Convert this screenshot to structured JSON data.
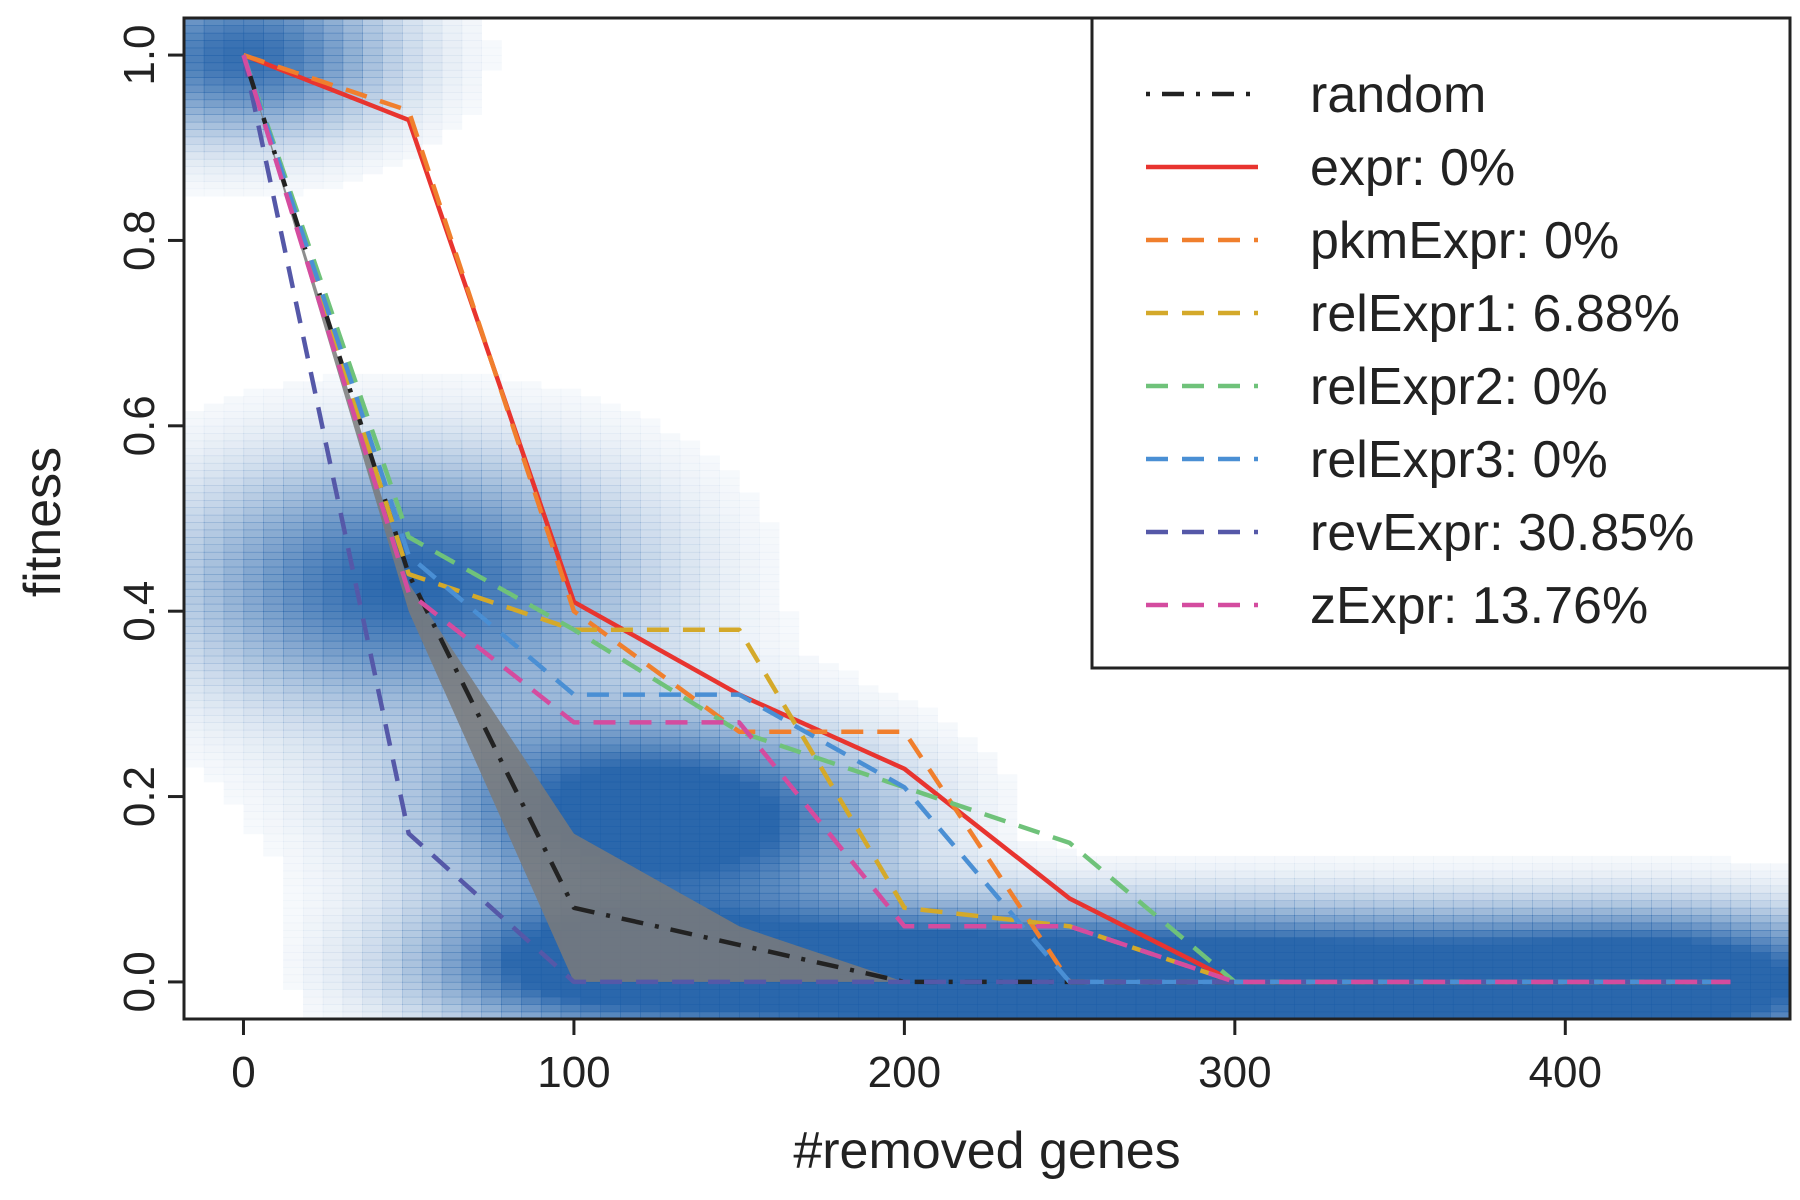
{
  "chart_data": {
    "type": "line",
    "title": "",
    "xlabel": "#removed genes",
    "ylabel": "fitness",
    "xlim": [
      -18,
      468
    ],
    "ylim": [
      -0.04,
      1.04
    ],
    "xticks": [
      0,
      100,
      200,
      300,
      400
    ],
    "yticks": [
      0.0,
      0.2,
      0.4,
      0.6,
      0.8,
      1.0
    ],
    "xtick_labels": [
      "0",
      "100",
      "200",
      "300",
      "400"
    ],
    "ytick_labels": [
      "0.0",
      "0.2",
      "0.4",
      "0.6",
      "0.8",
      "1.0"
    ],
    "grid": false,
    "legend_position": "top-right",
    "density_heatmap": {
      "color": "#1f5fa8",
      "blobs": [
        {
          "x": 0,
          "y": 1.0,
          "sx": 30,
          "sy": 0.06,
          "w": 0.95
        },
        {
          "x": 50,
          "y": 0.43,
          "sx": 45,
          "sy": 0.09,
          "w": 1.0
        },
        {
          "x": 110,
          "y": 0.19,
          "sx": 42,
          "sy": 0.07,
          "w": 0.9
        },
        {
          "x": 150,
          "y": 0.17,
          "sx": 35,
          "sy": 0.06,
          "w": 0.6
        },
        {
          "x": 100,
          "y": 0.02,
          "sx": 35,
          "sy": 0.05,
          "w": 0.85
        },
        {
          "x": 170,
          "y": 0.01,
          "sx": 50,
          "sy": 0.05,
          "w": 1.0
        },
        {
          "x": 260,
          "y": 0.005,
          "sx": 60,
          "sy": 0.05,
          "w": 1.0
        },
        {
          "x": 360,
          "y": 0.0,
          "sx": 60,
          "sy": 0.05,
          "w": 1.0
        },
        {
          "x": 440,
          "y": 0.0,
          "sx": 40,
          "sy": 0.05,
          "w": 1.0
        }
      ]
    },
    "random_band": {
      "x": [
        0,
        50,
        100,
        150,
        200,
        200,
        150,
        100,
        50,
        0
      ],
      "y": [
        1.0,
        0.43,
        0.16,
        0.06,
        0.0,
        0.0,
        0.0,
        0.0,
        0.4,
        1.0
      ]
    },
    "series": [
      {
        "name": "random",
        "color": "#222222",
        "dash": "dotdash",
        "x": [
          0,
          50,
          100,
          150,
          200,
          250,
          300,
          350,
          400,
          450
        ],
        "y": [
          1.0,
          0.44,
          0.08,
          0.04,
          0.0,
          0.0,
          0.0,
          0.0,
          0.0,
          0.0
        ]
      },
      {
        "name": "expr: 0%",
        "color": "#e8342f",
        "dash": "solid",
        "x": [
          0,
          50,
          100,
          150,
          200,
          250,
          300,
          350,
          400,
          450
        ],
        "y": [
          1.0,
          0.93,
          0.41,
          0.31,
          0.23,
          0.09,
          0.0,
          0.0,
          0.0,
          0.0
        ]
      },
      {
        "name": "pkmExpr: 0%",
        "color": "#f07f2d",
        "dash": "dashed",
        "x": [
          0,
          50,
          100,
          150,
          200,
          250,
          300,
          350,
          400,
          450
        ],
        "y": [
          1.0,
          0.94,
          0.4,
          0.27,
          0.27,
          0.0,
          0.0,
          0.0,
          0.0,
          0.0
        ]
      },
      {
        "name": "relExpr1: 6.88%",
        "color": "#d4a92a",
        "dash": "dashed",
        "x": [
          0,
          50,
          100,
          150,
          200,
          250,
          300,
          350,
          400,
          450
        ],
        "y": [
          1.0,
          0.44,
          0.38,
          0.38,
          0.08,
          0.06,
          0.0,
          0.0,
          0.0,
          0.0
        ]
      },
      {
        "name": "relExpr2: 0%",
        "color": "#6fc27a",
        "dash": "dashed",
        "x": [
          0,
          50,
          100,
          150,
          200,
          250,
          300,
          350,
          400,
          450
        ],
        "y": [
          1.0,
          0.48,
          0.38,
          0.27,
          0.21,
          0.15,
          0.0,
          0.0,
          0.0,
          0.0
        ]
      },
      {
        "name": "relExpr3: 0%",
        "color": "#4a8fd4",
        "dash": "dashed",
        "x": [
          0,
          50,
          100,
          150,
          200,
          250,
          300,
          350,
          400,
          450
        ],
        "y": [
          1.0,
          0.46,
          0.31,
          0.31,
          0.21,
          0.0,
          0.0,
          0.0,
          0.0,
          0.0
        ]
      },
      {
        "name": "revExpr: 30.85%",
        "color": "#5558a8",
        "dash": "dashed",
        "x": [
          0,
          50,
          100,
          150,
          200,
          250,
          300,
          350,
          400,
          450
        ],
        "y": [
          1.0,
          0.16,
          0.0,
          0.0,
          0.0,
          0.0,
          0.0,
          0.0,
          0.0,
          0.0
        ]
      },
      {
        "name": "zExpr: 13.76%",
        "color": "#d44c9f",
        "dash": "dashed",
        "x": [
          0,
          50,
          100,
          150,
          200,
          250,
          300,
          350,
          400,
          450
        ],
        "y": [
          1.0,
          0.42,
          0.28,
          0.28,
          0.06,
          0.06,
          0.0,
          0.0,
          0.0,
          0.0
        ]
      }
    ]
  }
}
